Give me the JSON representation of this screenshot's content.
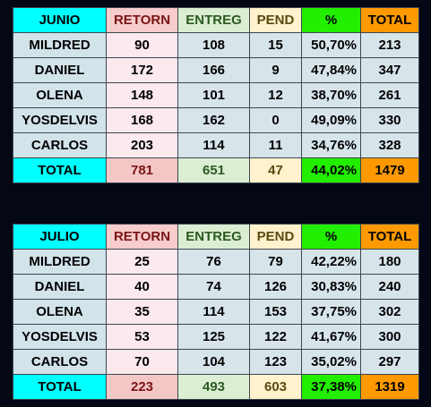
{
  "tables": [
    {
      "month": "JUNIO",
      "headers": {
        "retorn": "RETORN",
        "entreg": "ENTREG",
        "pend": "PEND",
        "pct": "%",
        "total": "TOTAL"
      },
      "rows": [
        {
          "name": "MILDRED",
          "retorn": "90",
          "entreg": "108",
          "pend": "15",
          "pct": "50,70%",
          "total": "213"
        },
        {
          "name": "DANIEL",
          "retorn": "172",
          "entreg": "166",
          "pend": "9",
          "pct": "47,84%",
          "total": "347"
        },
        {
          "name": "OLENA",
          "retorn": "148",
          "entreg": "101",
          "pend": "12",
          "pct": "38,70%",
          "total": "261"
        },
        {
          "name": "YOSDELVIS",
          "retorn": "168",
          "entreg": "162",
          "pend": "0",
          "pct": "49,09%",
          "total": "330"
        },
        {
          "name": "CARLOS",
          "retorn": "203",
          "entreg": "114",
          "pend": "11",
          "pct": "34,76%",
          "total": "328"
        }
      ],
      "totals": {
        "name": "TOTAL",
        "retorn": "781",
        "entreg": "651",
        "pend": "47",
        "pct": "44,02%",
        "total": "1479"
      }
    },
    {
      "month": "JULIO",
      "headers": {
        "retorn": "RETORN",
        "entreg": "ENTREG",
        "pend": "PEND",
        "pct": "%",
        "total": "TOTAL"
      },
      "rows": [
        {
          "name": "MILDRED",
          "retorn": "25",
          "entreg": "76",
          "pend": "79",
          "pct": "42,22%",
          "total": "180"
        },
        {
          "name": "DANIEL",
          "retorn": "40",
          "entreg": "74",
          "pend": "126",
          "pct": "30,83%",
          "total": "240"
        },
        {
          "name": "OLENA",
          "retorn": "35",
          "entreg": "114",
          "pend": "153",
          "pct": "37,75%",
          "total": "302"
        },
        {
          "name": "YOSDELVIS",
          "retorn": "53",
          "entreg": "125",
          "pend": "122",
          "pct": "41,67%",
          "total": "300"
        },
        {
          "name": "CARLOS",
          "retorn": "70",
          "entreg": "104",
          "pend": "123",
          "pct": "35,02%",
          "total": "297"
        }
      ],
      "totals": {
        "name": "TOTAL",
        "retorn": "223",
        "entreg": "493",
        "pend": "603",
        "pct": "37,38%",
        "total": "1319"
      }
    }
  ]
}
